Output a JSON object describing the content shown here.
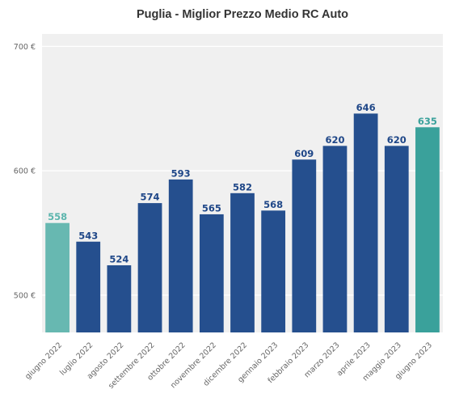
{
  "chart_data": {
    "type": "bar",
    "title": "Puglia - Miglior Prezzo Medio RC Auto",
    "xlabel": "",
    "ylabel": "",
    "ylim": [
      470,
      710
    ],
    "yticks": [
      500,
      600,
      700
    ],
    "ytick_labels": [
      "500 €",
      "600 €",
      "700 €"
    ],
    "categories": [
      "giugno 2022",
      "luglio 2022",
      "agosto 2022",
      "settembre 2022",
      "ottobre 2022",
      "novembre 2022",
      "dicembre 2022",
      "gennaio 2023",
      "febbraio 2023",
      "marzo 2023",
      "aprile 2023",
      "maggio 2023",
      "giugno 2023"
    ],
    "values": [
      558,
      543,
      524,
      574,
      593,
      565,
      582,
      568,
      609,
      620,
      646,
      620,
      635
    ],
    "bar_colors": [
      "#67b8b1",
      "#254f8e",
      "#254f8e",
      "#254f8e",
      "#254f8e",
      "#254f8e",
      "#254f8e",
      "#254f8e",
      "#254f8e",
      "#254f8e",
      "#254f8e",
      "#254f8e",
      "#3aa19b"
    ],
    "label_colors": [
      "#5bb5ad",
      "#1f4788",
      "#1f4788",
      "#1f4788",
      "#1f4788",
      "#1f4788",
      "#1f4788",
      "#1f4788",
      "#1f4788",
      "#1f4788",
      "#1f4788",
      "#1f4788",
      "#3aa19b"
    ],
    "grid": true,
    "background_color": "#f0f0f0",
    "legend": "none"
  }
}
